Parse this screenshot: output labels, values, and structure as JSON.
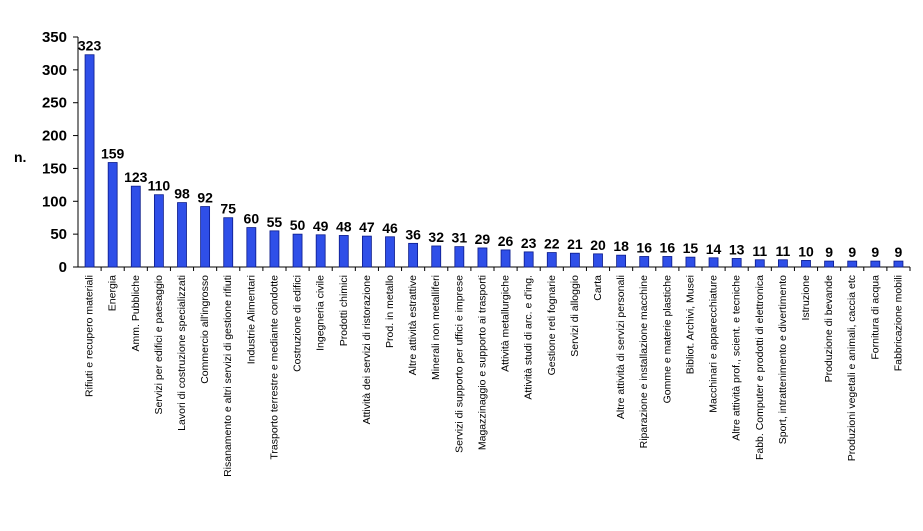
{
  "chart_data": {
    "type": "bar",
    "ylabel": "n.",
    "xlabel": "",
    "title": "",
    "ylim": [
      0,
      350
    ],
    "yticks": [
      0,
      50,
      100,
      150,
      200,
      250,
      300,
      350
    ],
    "grid": false,
    "legend": "none",
    "colors": {
      "bar": "#2f4fe8",
      "bar_edge": "#0a1a8a",
      "axis": "#000000"
    },
    "categories": [
      "Rifiuti e recupero materiali",
      "Energia",
      "Amm. Pubbliche",
      "Servizi per edifici e paesaggio",
      "Lavori di costruzione specializzati",
      "Commercio all'ingrosso",
      "Risanamento e altri servizi di gestione rifiuti",
      "Industrie Alimentari",
      "Trasporto terrestre e mediante condotte",
      "Costruzione di edifici",
      "Ingegneria civile",
      "Prodotti chimici",
      "Attività dei servizi di ristorazione",
      "Prod. in metallo",
      "Altre attività estrattive",
      "Minerali non metalliferi",
      "Servizi di supporto per uffici e imprese",
      "Magazzinaggio e supporto ai trasporti",
      "Attività metallurgiche",
      "Attività studi di arc. e d'ing.",
      "Gestione reti fognarie",
      "Servizi di alloggio",
      "Carta",
      "Altre attività di servizi personali",
      "Riparazione e installazione macchine",
      "Gomme e materie plastiche",
      "Bibliot. Archivi, Musei",
      "Macchinari e apparecchiature",
      "Altre attività prof., scient. e tecniche",
      "Fabb. Computer e prodotti di elettronica",
      "Sport, intrattenimento e divertimento",
      "Istruzione",
      "Produzione di bevande",
      "Produzioni vegetali e animali, caccia etc",
      "Fornitura di acqua",
      "Fabbricazione mobili"
    ],
    "values": [
      323,
      159,
      123,
      110,
      98,
      92,
      75,
      60,
      55,
      50,
      49,
      48,
      47,
      46,
      36,
      32,
      31,
      29,
      26,
      23,
      22,
      21,
      20,
      18,
      16,
      16,
      15,
      14,
      13,
      11,
      11,
      10,
      9,
      9,
      9,
      9
    ]
  }
}
